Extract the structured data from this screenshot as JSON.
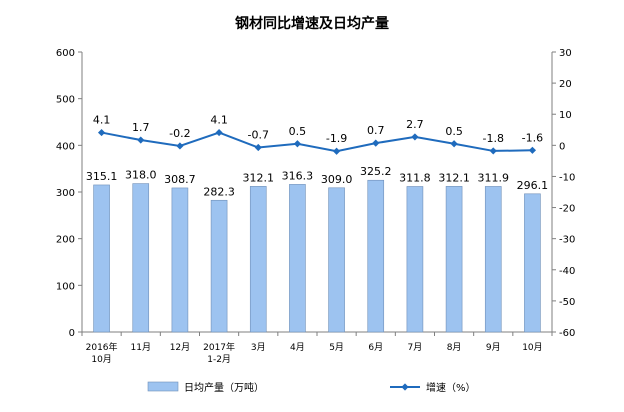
{
  "chart_data": {
    "type": "bar+line",
    "title": "钢材同比增速及日均产量",
    "categories": [
      [
        "2016年",
        "10月"
      ],
      [
        "11月"
      ],
      [
        "12月"
      ],
      [
        "2017年",
        "1-2月"
      ],
      [
        "3月"
      ],
      [
        "4月"
      ],
      [
        "5月"
      ],
      [
        "6月"
      ],
      [
        "7月"
      ],
      [
        "8月"
      ],
      [
        "9月"
      ],
      [
        "10月"
      ]
    ],
    "series": [
      {
        "name": "日均产量（万吨）",
        "type": "bar",
        "axis": "left",
        "color": "#9dc3f0",
        "values": [
          315.1,
          318.0,
          308.7,
          282.3,
          312.1,
          316.3,
          309.0,
          325.2,
          311.8,
          312.1,
          311.9,
          296.1
        ],
        "labels": [
          "315.1",
          "318.0",
          "308.7",
          "282.3",
          "312.1",
          "316.3",
          "309.0",
          "325.2",
          "311.8",
          "312.1",
          "311.9",
          "296.1"
        ]
      },
      {
        "name": "增速（%）",
        "type": "line",
        "axis": "right",
        "color": "#1f6bbd",
        "values": [
          4.1,
          1.7,
          -0.2,
          4.1,
          -0.7,
          0.5,
          -1.9,
          0.7,
          2.7,
          0.5,
          -1.8,
          -1.6
        ],
        "labels": [
          "4.1",
          "1.7",
          "-0.2",
          "4.1",
          "-0.7",
          "0.5",
          "-1.9",
          "0.7",
          "2.7",
          "0.5",
          "-1.8",
          "-1.6"
        ]
      }
    ],
    "y_left": {
      "min": 0,
      "max": 600,
      "step": 100
    },
    "y_right": {
      "min": -60,
      "max": 30,
      "step": 10
    },
    "grid": false,
    "legend_position": "bottom"
  }
}
